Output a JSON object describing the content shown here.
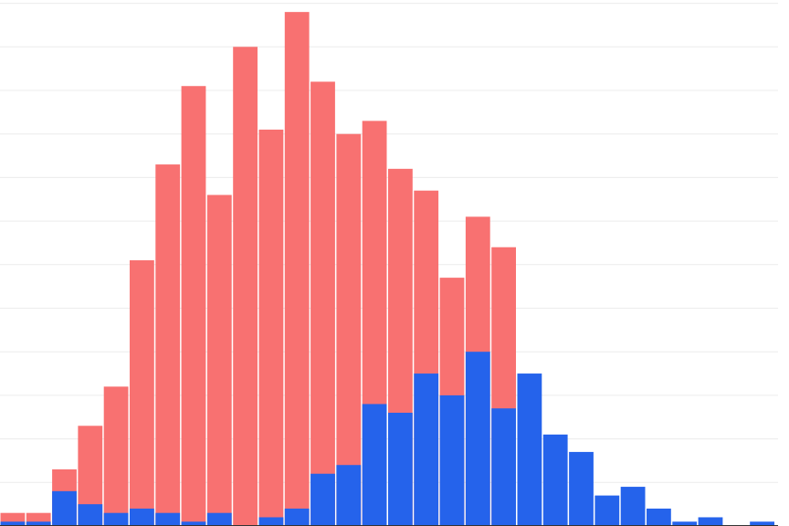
{
  "chart_data": {
    "type": "bar",
    "mode": "overlay",
    "bins": 30,
    "ylim": [
      0,
      120
    ],
    "grid": true,
    "grid_step": 10,
    "legend": "none",
    "series": [
      {
        "color": "#f87171",
        "values": [
          3,
          3,
          13,
          23,
          32,
          61,
          83,
          101,
          76,
          110,
          91,
          118,
          102,
          90,
          93,
          82,
          77,
          57,
          71,
          64,
          0,
          0,
          0,
          0,
          0,
          0,
          0,
          0,
          0,
          0
        ]
      },
      {
        "color": "#2563eb",
        "values": [
          1,
          1,
          8,
          5,
          3,
          4,
          3,
          1,
          3,
          0,
          2,
          4,
          12,
          14,
          28,
          26,
          35,
          30,
          40,
          27,
          35,
          21,
          17,
          7,
          9,
          4,
          1,
          2,
          0,
          1
        ]
      }
    ]
  }
}
